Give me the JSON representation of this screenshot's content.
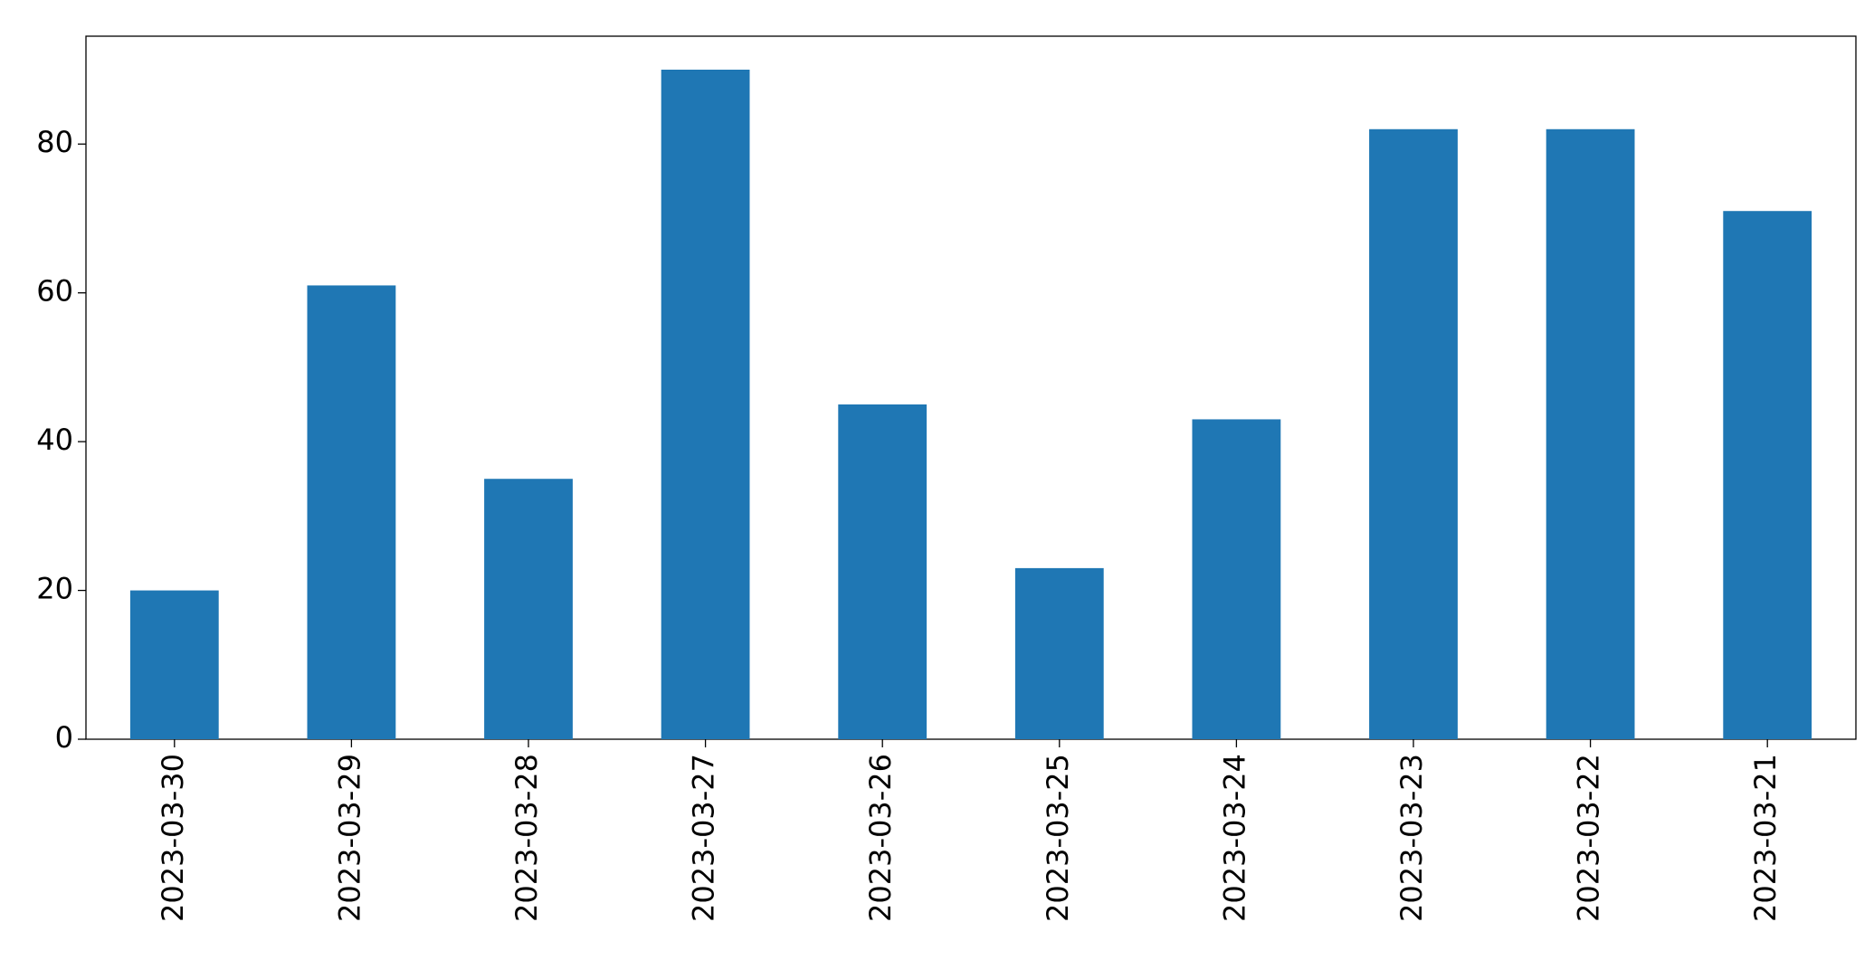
{
  "chart_data": {
    "type": "bar",
    "categories": [
      "2023-03-30",
      "2023-03-29",
      "2023-03-28",
      "2023-03-27",
      "2023-03-26",
      "2023-03-25",
      "2023-03-24",
      "2023-03-23",
      "2023-03-22",
      "2023-03-21"
    ],
    "values": [
      20,
      61,
      35,
      90,
      45,
      23,
      43,
      82,
      82,
      71
    ],
    "color": "#1f77b4",
    "ylim": [
      0,
      94.5
    ],
    "yticks": [
      0,
      20,
      40,
      60,
      80
    ],
    "grid": false
  }
}
